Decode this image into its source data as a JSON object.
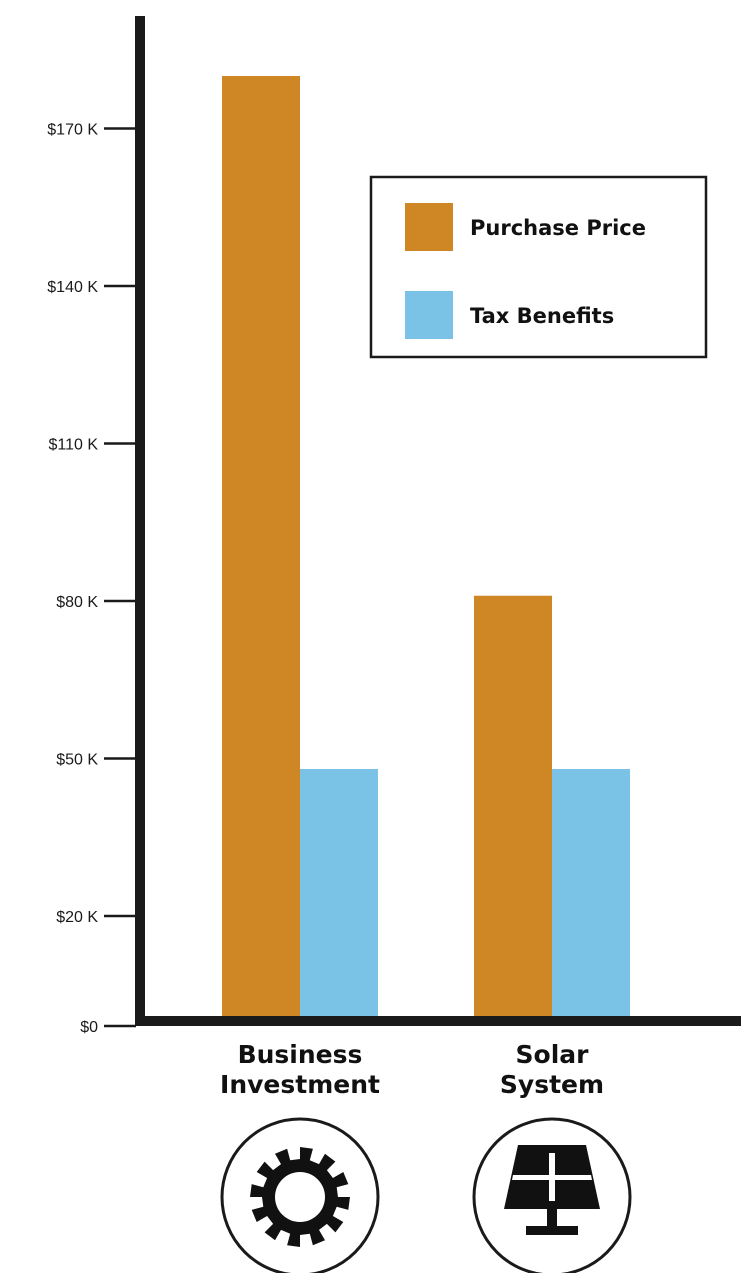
{
  "chart_data": {
    "type": "bar",
    "categories": [
      "Business Investment",
      "Solar System"
    ],
    "category_label_lines": [
      [
        "Business",
        "Investment"
      ],
      [
        "Solar",
        "System"
      ]
    ],
    "category_icons": [
      "gear-icon",
      "solar-panel-icon"
    ],
    "series": [
      {
        "name": "Purchase Price",
        "values": [
          180,
          81
        ],
        "color": "#cf8625"
      },
      {
        "name": "Tax Benefits",
        "values": [
          48,
          48
        ],
        "color": "#7bc3e6"
      }
    ],
    "unit": "thousand USD",
    "yticks": [
      0,
      20,
      50,
      80,
      110,
      140,
      170
    ],
    "ytick_labels": [
      "$0",
      "$20 K",
      "$50 K",
      "$80 K",
      "$110 K",
      "$140 K",
      "$170 K"
    ],
    "ylim": [
      0,
      180
    ],
    "grid": false,
    "legend_position": "top-right",
    "title": "",
    "xlabel": "",
    "ylabel": ""
  }
}
